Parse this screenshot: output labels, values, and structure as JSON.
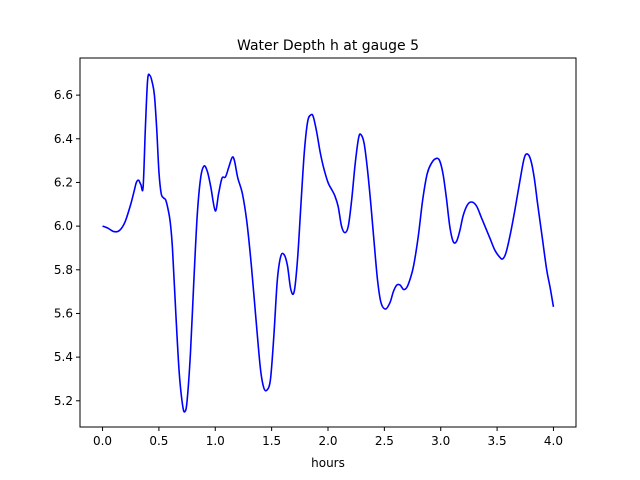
{
  "chart_data": {
    "type": "line",
    "title": "Water Depth h at gauge 5",
    "xlabel": "hours",
    "ylabel": "",
    "xlim": [
      -0.2,
      4.2
    ],
    "ylim": [
      5.08,
      6.77
    ],
    "xticks": [
      0.0,
      0.5,
      1.0,
      1.5,
      2.0,
      2.5,
      3.0,
      3.5,
      4.0
    ],
    "xtick_labels": [
      "0.0",
      "0.5",
      "1.0",
      "1.5",
      "2.0",
      "2.5",
      "3.0",
      "3.5",
      "4.0"
    ],
    "yticks": [
      5.2,
      5.4,
      5.6,
      5.8,
      6.0,
      6.2,
      6.4,
      6.6
    ],
    "ytick_labels": [
      "5.2",
      "5.4",
      "5.6",
      "5.8",
      "6.0",
      "6.2",
      "6.4",
      "6.6"
    ],
    "grid": false,
    "series": [
      {
        "name": "",
        "color": "#0000ff",
        "x": [
          0.0,
          0.05,
          0.1,
          0.15,
          0.2,
          0.25,
          0.28,
          0.3,
          0.32,
          0.34,
          0.36,
          0.38,
          0.4,
          0.42,
          0.44,
          0.46,
          0.48,
          0.5,
          0.52,
          0.54,
          0.56,
          0.58,
          0.6,
          0.62,
          0.65,
          0.68,
          0.71,
          0.73,
          0.75,
          0.78,
          0.81,
          0.84,
          0.87,
          0.9,
          0.93,
          0.96,
          1.0,
          1.03,
          1.06,
          1.09,
          1.12,
          1.15,
          1.17,
          1.2,
          1.24,
          1.28,
          1.32,
          1.36,
          1.4,
          1.43,
          1.46,
          1.49,
          1.52,
          1.55,
          1.58,
          1.61,
          1.64,
          1.67,
          1.7,
          1.73,
          1.76,
          1.79,
          1.82,
          1.85,
          1.87,
          1.9,
          1.93,
          1.96,
          2.0,
          2.03,
          2.06,
          2.09,
          2.12,
          2.15,
          2.18,
          2.21,
          2.24,
          2.27,
          2.29,
          2.32,
          2.35,
          2.38,
          2.41,
          2.44,
          2.47,
          2.51,
          2.55,
          2.58,
          2.61,
          2.64,
          2.67,
          2.7,
          2.73,
          2.76,
          2.8,
          2.84,
          2.88,
          2.92,
          2.96,
          2.99,
          3.02,
          3.05,
          3.08,
          3.11,
          3.14,
          3.17,
          3.2,
          3.24,
          3.28,
          3.32,
          3.36,
          3.4,
          3.44,
          3.48,
          3.52,
          3.55,
          3.58,
          3.62,
          3.66,
          3.7,
          3.74,
          3.77,
          3.8,
          3.83,
          3.86,
          3.9,
          3.94,
          3.97,
          4.0
        ],
        "y": [
          6.0,
          5.99,
          5.975,
          5.98,
          6.02,
          6.1,
          6.16,
          6.2,
          6.21,
          6.19,
          6.18,
          6.45,
          6.67,
          6.69,
          6.66,
          6.6,
          6.45,
          6.25,
          6.15,
          6.13,
          6.12,
          6.08,
          6.02,
          5.9,
          5.6,
          5.33,
          5.18,
          5.15,
          5.2,
          5.42,
          5.75,
          6.05,
          6.22,
          6.275,
          6.25,
          6.18,
          6.07,
          6.15,
          6.22,
          6.225,
          6.27,
          6.315,
          6.3,
          6.22,
          6.15,
          6.02,
          5.82,
          5.58,
          5.35,
          5.26,
          5.25,
          5.3,
          5.5,
          5.75,
          5.86,
          5.87,
          5.82,
          5.71,
          5.7,
          5.85,
          6.1,
          6.34,
          6.48,
          6.51,
          6.5,
          6.43,
          6.34,
          6.27,
          6.2,
          6.17,
          6.14,
          6.09,
          6.0,
          5.97,
          6.0,
          6.12,
          6.28,
          6.4,
          6.42,
          6.38,
          6.26,
          6.1,
          5.92,
          5.75,
          5.65,
          5.62,
          5.65,
          5.7,
          5.73,
          5.73,
          5.71,
          5.72,
          5.76,
          5.82,
          5.95,
          6.12,
          6.24,
          6.29,
          6.31,
          6.3,
          6.24,
          6.13,
          6.0,
          5.93,
          5.93,
          5.98,
          6.05,
          6.1,
          6.11,
          6.09,
          6.04,
          5.99,
          5.94,
          5.89,
          5.86,
          5.85,
          5.88,
          5.97,
          6.08,
          6.2,
          6.31,
          6.33,
          6.3,
          6.22,
          6.1,
          5.95,
          5.8,
          5.72,
          5.63
        ]
      }
    ]
  }
}
